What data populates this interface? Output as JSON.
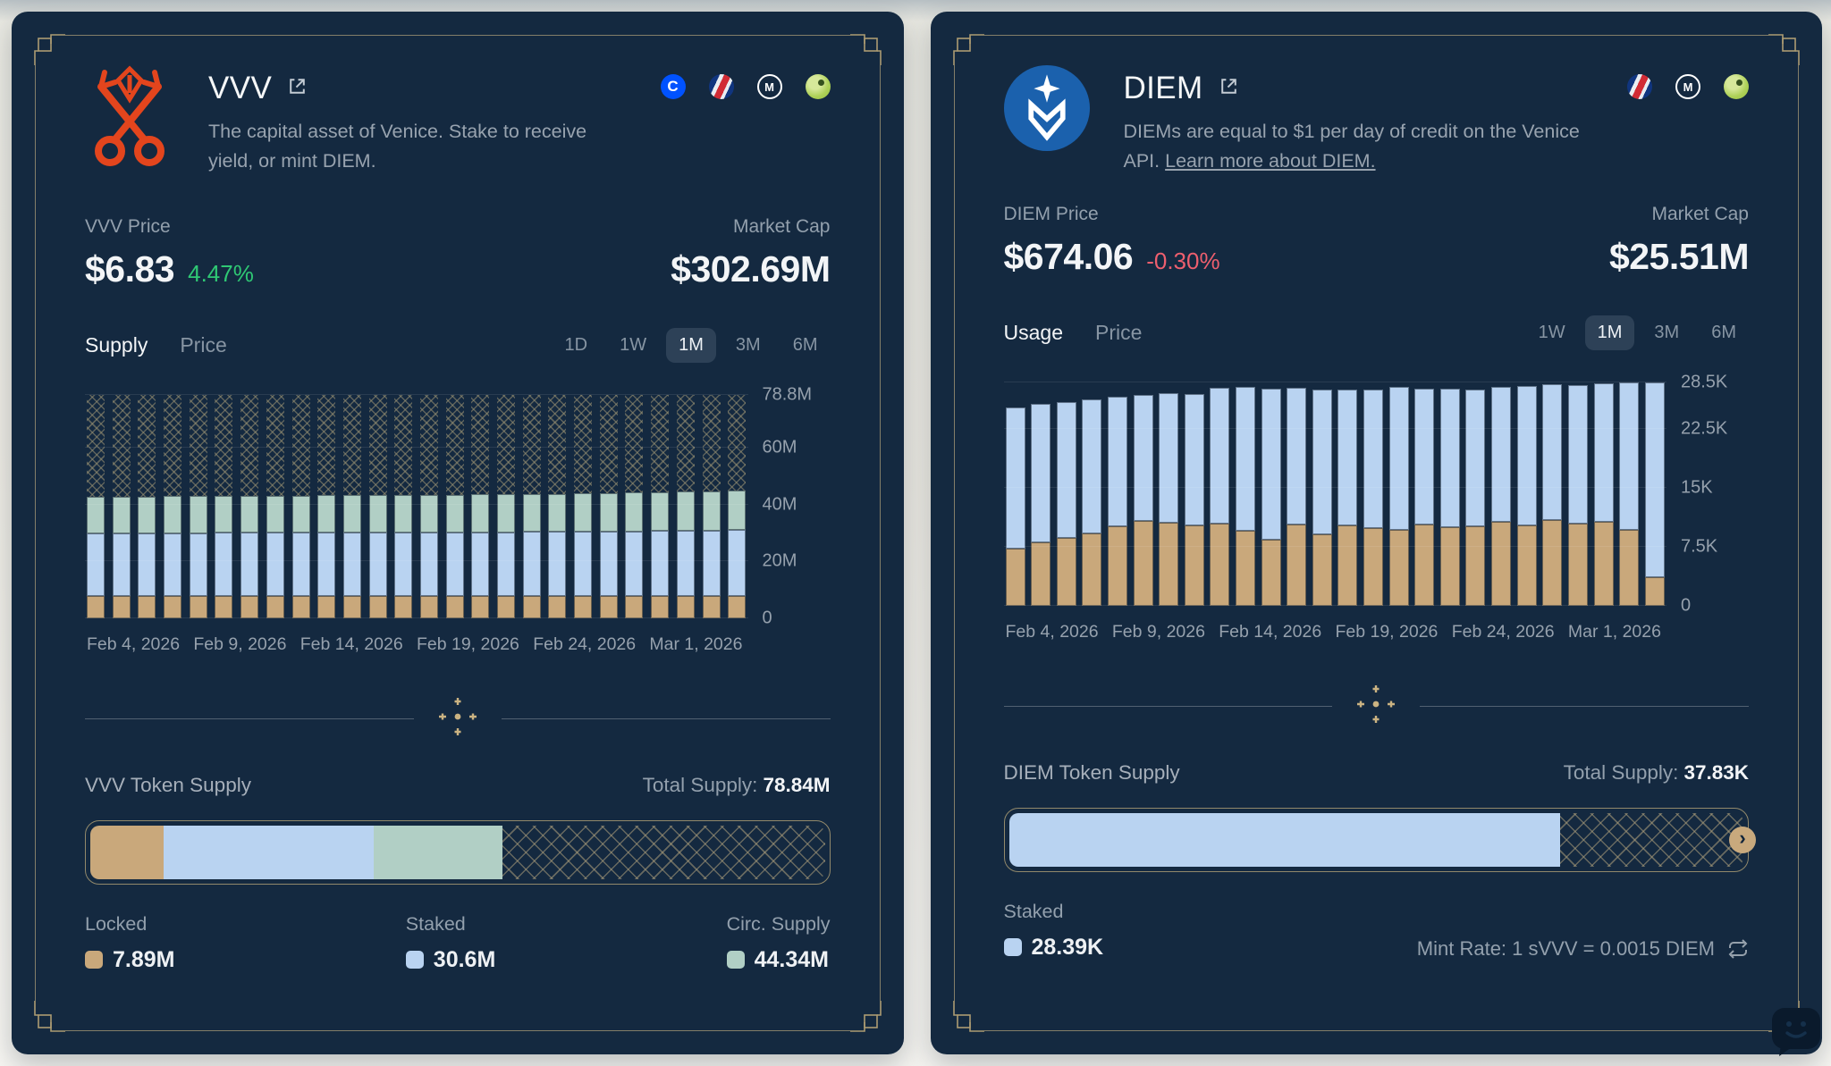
{
  "vvv": {
    "title": "VVV",
    "description": "The capital asset of Venice. Stake to receive yield, or mint DIEM.",
    "social_icons": [
      "coinbase-icon",
      "exchange-swirl-icon",
      "coinmarketcap-icon",
      "coingecko-icon"
    ],
    "price_label": "VVV Price",
    "price": "$6.83",
    "change": "4.47%",
    "market_cap_label": "Market Cap",
    "market_cap": "$302.69M",
    "tabs": [
      {
        "label": "Supply"
      },
      {
        "label": "Price"
      }
    ],
    "timeframes": [
      {
        "label": "1D"
      },
      {
        "label": "1W"
      },
      {
        "label": "1M"
      },
      {
        "label": "3M"
      },
      {
        "label": "6M"
      }
    ],
    "supply": {
      "title": "VVV Token Supply",
      "total_label": "Total Supply:",
      "total": "78.84M",
      "segments": [
        {
          "label": "Locked",
          "value": "7.89M",
          "color": "#c9a87b",
          "pct": 10
        },
        {
          "label": "Staked",
          "value": "30.6M",
          "color": "#b9d3f1",
          "pct": 28.6
        },
        {
          "label": "Circ. Supply",
          "value": "44.34M",
          "color": "#b1cfc5",
          "pct": 17.5
        }
      ]
    }
  },
  "diem": {
    "title": "DIEM",
    "description": "DIEMs are equal to $1 per day of credit on the Venice API.",
    "link_text": "Learn more about DIEM.",
    "social_icons": [
      "exchange-swirl-icon",
      "coinmarketcap-icon",
      "coingecko-icon"
    ],
    "price_label": "DIEM Price",
    "price": "$674.06",
    "change": "-0.30%",
    "market_cap_label": "Market Cap",
    "market_cap": "$25.51M",
    "tabs": [
      {
        "label": "Usage"
      },
      {
        "label": "Price"
      }
    ],
    "timeframes": [
      {
        "label": "1W"
      },
      {
        "label": "1M"
      },
      {
        "label": "3M"
      },
      {
        "label": "6M"
      }
    ],
    "supply": {
      "title": "DIEM Token Supply",
      "total_label": "Total Supply:",
      "total": "37.83K",
      "segments": [
        {
          "label": "Staked",
          "value": "28.39K",
          "color": "#b9d3f1",
          "pct": 75
        }
      ],
      "mint_rate": "Mint Rate: 1 sVVV = 0.0015 DIEM"
    }
  },
  "colors": {
    "card_bg": "#142940",
    "gold_frame": "#b5a377",
    "green_up": "#2fc874",
    "red_down": "#ed5f6e",
    "bar_tan": "#c9a87b",
    "bar_blue": "#b9d3f1",
    "bar_teal": "#b1cfc5"
  },
  "chart_data": [
    {
      "type": "bar",
      "card": "vvv",
      "title": "VVV supply over time (stacked: locked / staked / circulating / unminted-hatch)",
      "x_labels": [
        "Feb 4, 2026",
        "Feb 9, 2026",
        "Feb 14, 2026",
        "Feb 19, 2026",
        "Feb 24, 2026",
        "Mar 1, 2026"
      ],
      "y_ticks": [
        {
          "v": 0,
          "label": "0"
        },
        {
          "v": 20,
          "label": "20M"
        },
        {
          "v": 40,
          "label": "40M"
        },
        {
          "v": 60,
          "label": "60M"
        },
        {
          "v": 78.8,
          "label": "78.8M"
        }
      ],
      "y_max": 78.8,
      "unit": "M tokens",
      "grid": true,
      "cum_series": [
        {
          "name": "locked",
          "color": "#c9a87b",
          "values": [
            7.9,
            7.9,
            7.9,
            7.9,
            7.9,
            7.9,
            7.9,
            7.9,
            7.9,
            7.9,
            7.9,
            7.9,
            7.9,
            7.9,
            7.9,
            7.9,
            7.9,
            7.9,
            7.9,
            7.9,
            7.9,
            7.9,
            7.9,
            7.9,
            7.9,
            7.9
          ]
        },
        {
          "name": "staked",
          "color": "#b9d3f1",
          "values": [
            29.8,
            29.8,
            29.9,
            29.9,
            29.9,
            30.0,
            30.0,
            30.0,
            30.1,
            30.1,
            30.1,
            30.2,
            30.2,
            30.2,
            30.3,
            30.3,
            30.3,
            30.4,
            30.4,
            30.5,
            30.5,
            30.6,
            30.7,
            30.8,
            30.9,
            31.0
          ]
        },
        {
          "name": "circulating",
          "color": "#b1cfc5",
          "values": [
            42.8,
            42.9,
            42.9,
            43.0,
            43.0,
            43.1,
            43.1,
            43.2,
            43.2,
            43.3,
            43.3,
            43.4,
            43.4,
            43.5,
            43.5,
            43.6,
            43.6,
            43.7,
            43.8,
            43.9,
            44.0,
            44.2,
            44.3,
            44.5,
            44.7,
            45.0
          ]
        }
      ],
      "fill_to_max_hatch": true
    },
    {
      "type": "bar",
      "card": "diem",
      "title": "DIEM usage over time (stacked: used-tan / staked-blue)",
      "x_labels": [
        "Feb 4, 2026",
        "Feb 9, 2026",
        "Feb 14, 2026",
        "Feb 19, 2026",
        "Feb 24, 2026",
        "Mar 1, 2026"
      ],
      "y_ticks": [
        {
          "v": 0,
          "label": "0"
        },
        {
          "v": 7.5,
          "label": "7.5K"
        },
        {
          "v": 15,
          "label": "15K"
        },
        {
          "v": 22.5,
          "label": "22.5K"
        },
        {
          "v": 28.5,
          "label": "28.5K"
        }
      ],
      "y_max": 28.5,
      "unit": "K DIEM",
      "grid": true,
      "cum_series": [
        {
          "name": "base",
          "color": "#c9a87b",
          "values": [
            7.3,
            8.0,
            8.6,
            9.2,
            10.1,
            10.8,
            10.6,
            10.2,
            10.4,
            9.5,
            8.4,
            10.3,
            9.1,
            10.2,
            9.9,
            9.6,
            10.3,
            10.0,
            10.1,
            10.7,
            10.2,
            10.9,
            10.5,
            10.7,
            9.7,
            3.6
          ]
        },
        {
          "name": "total",
          "color": "#b9d3f1",
          "values": [
            25.3,
            25.7,
            26.0,
            26.3,
            26.6,
            26.9,
            27.1,
            27.0,
            27.8,
            27.9,
            27.7,
            27.8,
            27.5,
            27.6,
            27.6,
            27.9,
            27.7,
            27.7,
            27.6,
            27.9,
            28.0,
            28.2,
            28.1,
            28.4,
            28.5,
            28.5
          ]
        }
      ],
      "fill_to_max_hatch": false
    }
  ]
}
